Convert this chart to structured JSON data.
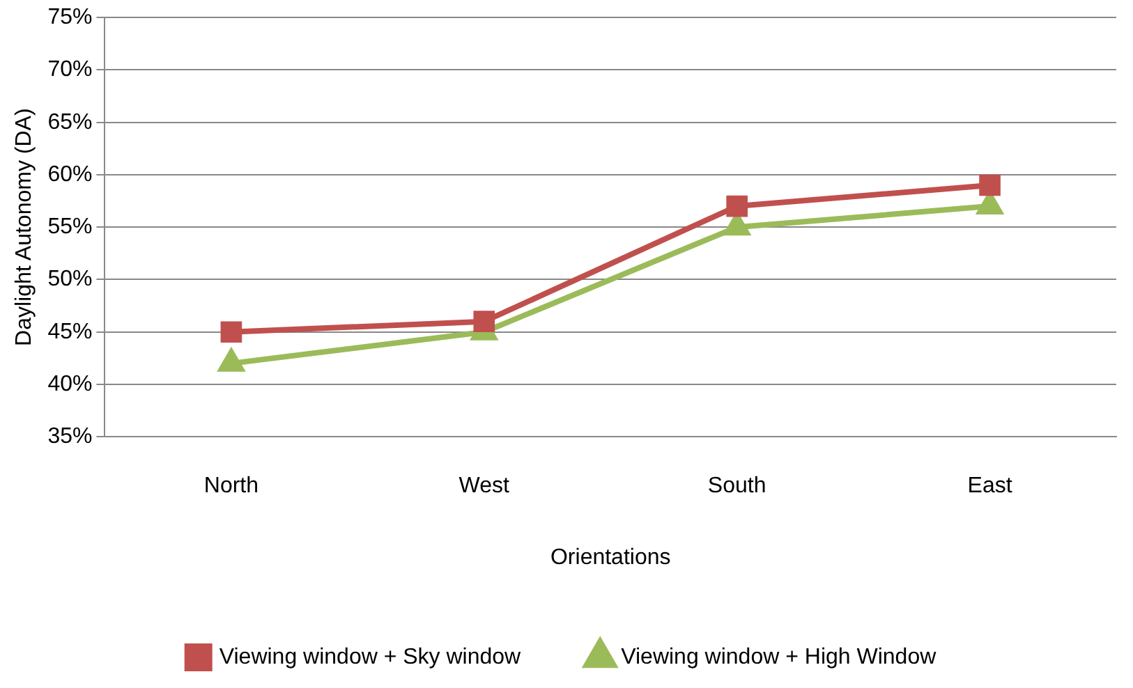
{
  "chart_data": {
    "type": "line",
    "xlabel": "Orientations",
    "ylabel": "Daylight Autonomy (DA)",
    "categories": [
      "North",
      "West",
      "South",
      "East"
    ],
    "series": [
      {
        "name": "Viewing window + Sky window",
        "color": "#c0504d",
        "marker": "square",
        "values": [
          45,
          46,
          57,
          59
        ]
      },
      {
        "name": "Viewing window + High Window",
        "color": "#9bbb59",
        "marker": "triangle",
        "values": [
          42,
          45,
          55,
          57
        ]
      }
    ],
    "ylim": [
      35,
      75
    ],
    "yticks": [
      {
        "value": 35,
        "label": "35%"
      },
      {
        "value": 40,
        "label": "40%"
      },
      {
        "value": 45,
        "label": "45%"
      },
      {
        "value": 50,
        "label": "50%"
      },
      {
        "value": 55,
        "label": "55%"
      },
      {
        "value": 60,
        "label": "60%"
      },
      {
        "value": 65,
        "label": "65%"
      },
      {
        "value": 70,
        "label": "70%"
      },
      {
        "value": 75,
        "label": "75%"
      }
    ],
    "grid": "y",
    "legend": "bottom",
    "line_style": "solid"
  }
}
